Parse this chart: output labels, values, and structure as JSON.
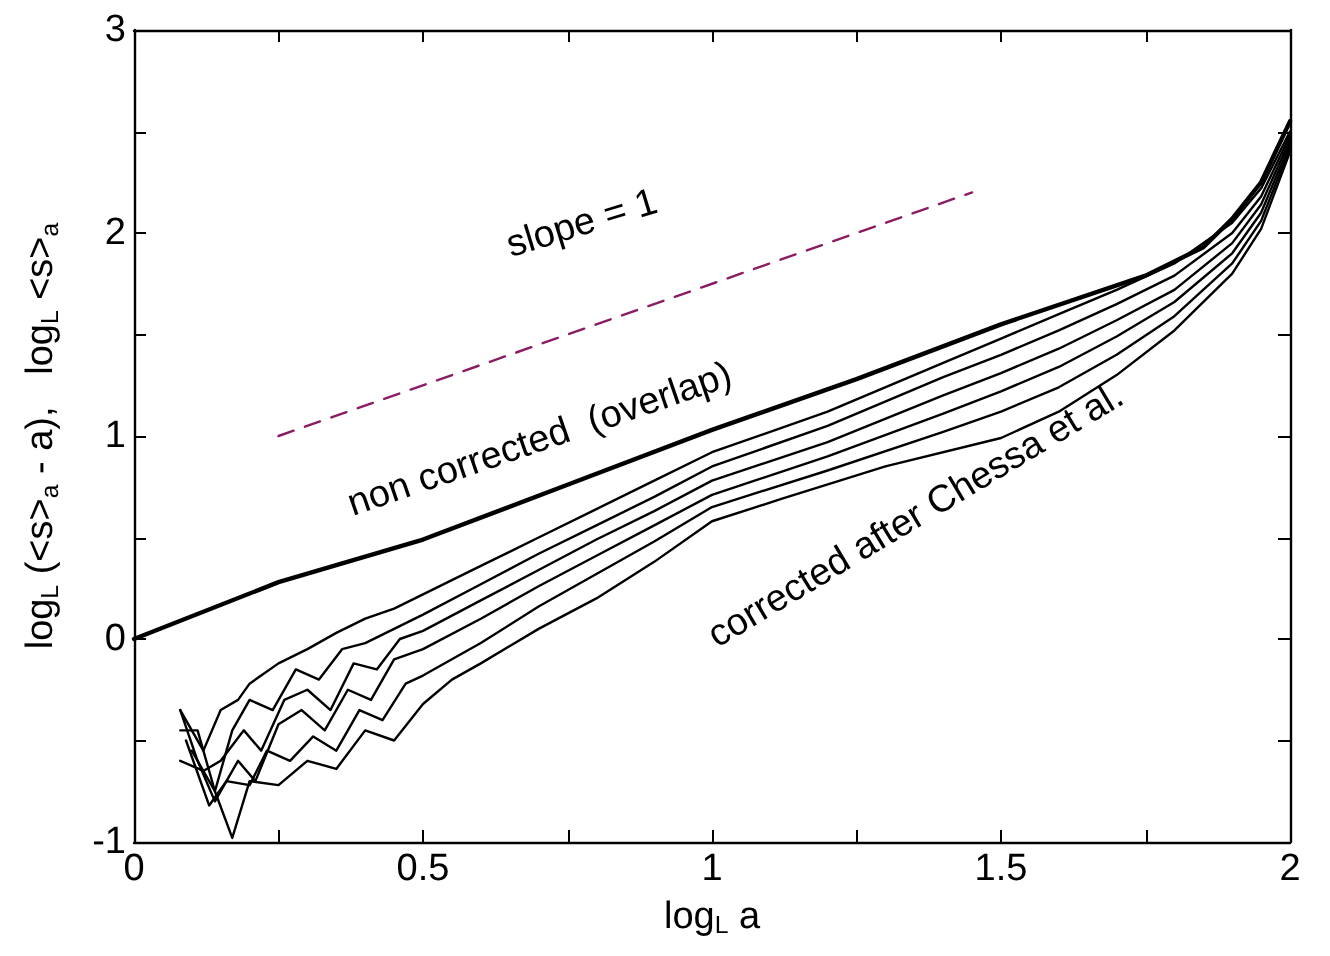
{
  "chart_data": {
    "type": "line",
    "xlabel": "log$_{L}$ a",
    "ylabel": "log$_{L}$ (<s>$_{a}$ - a),   log$_{L}$ <s>$_{a}$",
    "xlim": [
      0,
      2
    ],
    "ylim": [
      -1,
      3
    ],
    "xticks": [
      0,
      {
        "value": 0.25,
        "label": null
      },
      0.5,
      {
        "value": 0.75,
        "label": null
      },
      1,
      {
        "value": 1.25,
        "label": null
      },
      1.5,
      {
        "value": 1.75,
        "label": null
      },
      2
    ],
    "yticks": [
      -1,
      {
        "value": -0.5,
        "label": null
      },
      0,
      {
        "value": 0.5,
        "label": null
      },
      1,
      {
        "value": 1.5,
        "label": null
      },
      2,
      {
        "value": 2.5,
        "label": null
      },
      3
    ],
    "grid": false,
    "marker": "none",
    "line_style": "solid",
    "series": [
      {
        "color": "#000000",
        "x": [
          0,
          0.25,
          0.5,
          0.75,
          1,
          1.25,
          1.5,
          1.75,
          1.85,
          1.9,
          1.95,
          2
        ],
        "values": [
          0,
          0.28,
          0.49,
          0.76,
          1.03,
          1.28,
          1.55,
          1.79,
          1.93,
          2.07,
          2.25,
          2.55
        ]
      },
      {
        "color": "#000000",
        "x": [
          0.08,
          0.12,
          0.15,
          0.18,
          0.2,
          0.25,
          0.3,
          0.35,
          0.4,
          0.45,
          0.5,
          0.6,
          0.7,
          0.8,
          0.9,
          1,
          1.2,
          1.4,
          1.5,
          1.6,
          1.7,
          1.8,
          1.9,
          1.95,
          2
        ],
        "values": [
          -0.35,
          -0.55,
          -0.35,
          -0.3,
          -0.22,
          -0.12,
          -0.05,
          0.03,
          0.1,
          0.15,
          0.22,
          0.36,
          0.5,
          0.64,
          0.78,
          0.92,
          1.12,
          1.36,
          1.48,
          1.6,
          1.72,
          1.85,
          2.05,
          2.22,
          2.5
        ]
      },
      {
        "color": "#000000",
        "x": [
          0.08,
          0.11,
          0.14,
          0.17,
          0.2,
          0.24,
          0.28,
          0.32,
          0.36,
          0.4,
          0.45,
          0.5,
          0.6,
          0.7,
          0.8,
          0.9,
          1,
          1.2,
          1.4,
          1.5,
          1.6,
          1.7,
          1.8,
          1.9,
          1.95,
          2
        ],
        "values": [
          -0.45,
          -0.45,
          -0.75,
          -0.45,
          -0.3,
          -0.35,
          -0.15,
          -0.2,
          -0.05,
          -0.02,
          0.05,
          0.12,
          0.27,
          0.42,
          0.56,
          0.7,
          0.85,
          1.05,
          1.29,
          1.4,
          1.52,
          1.65,
          1.79,
          2,
          2.18,
          2.48
        ]
      },
      {
        "color": "#000000",
        "x": [
          0.08,
          0.12,
          0.15,
          0.19,
          0.22,
          0.26,
          0.3,
          0.34,
          0.38,
          0.42,
          0.46,
          0.5,
          0.6,
          0.7,
          0.8,
          0.9,
          1,
          1.2,
          1.4,
          1.5,
          1.6,
          1.7,
          1.8,
          1.9,
          1.95,
          2
        ],
        "values": [
          -0.6,
          -0.65,
          -0.6,
          -0.45,
          -0.55,
          -0.3,
          -0.25,
          -0.35,
          -0.12,
          -0.15,
          0,
          0.04,
          0.19,
          0.34,
          0.49,
          0.63,
          0.78,
          0.97,
          1.2,
          1.31,
          1.43,
          1.57,
          1.72,
          1.95,
          2.14,
          2.46
        ]
      },
      {
        "color": "#000000",
        "x": [
          0.08,
          0.11,
          0.14,
          0.18,
          0.21,
          0.25,
          0.29,
          0.33,
          0.37,
          0.41,
          0.45,
          0.5,
          0.6,
          0.7,
          0.8,
          0.9,
          1,
          1.2,
          1.4,
          1.5,
          1.6,
          1.7,
          1.8,
          1.9,
          1.95,
          2
        ],
        "values": [
          -0.35,
          -0.6,
          -0.8,
          -0.6,
          -0.7,
          -0.42,
          -0.35,
          -0.45,
          -0.25,
          -0.3,
          -0.1,
          -0.05,
          0.1,
          0.26,
          0.41,
          0.56,
          0.71,
          0.9,
          1.11,
          1.22,
          1.34,
          1.49,
          1.66,
          1.9,
          2.1,
          2.44
        ]
      },
      {
        "color": "#000000",
        "x": [
          0.09,
          0.13,
          0.16,
          0.2,
          0.23,
          0.27,
          0.31,
          0.35,
          0.39,
          0.43,
          0.47,
          0.5,
          0.6,
          0.7,
          0.8,
          0.9,
          1,
          1.2,
          1.4,
          1.5,
          1.6,
          1.7,
          1.8,
          1.9,
          1.95,
          2
        ],
        "values": [
          -0.5,
          -0.82,
          -0.7,
          -0.72,
          -0.55,
          -0.6,
          -0.48,
          -0.55,
          -0.35,
          -0.4,
          -0.22,
          -0.18,
          -0.02,
          0.16,
          0.32,
          0.48,
          0.65,
          0.83,
          1.02,
          1.12,
          1.24,
          1.4,
          1.59,
          1.85,
          2.06,
          2.42
        ]
      },
      {
        "color": "#000000",
        "x": [
          0.1,
          0.14,
          0.17,
          0.2,
          0.25,
          0.3,
          0.35,
          0.4,
          0.45,
          0.5,
          0.55,
          0.6,
          0.7,
          0.8,
          0.9,
          1,
          1.12,
          1.3,
          1.5,
          1.6,
          1.7,
          1.8,
          1.9,
          1.95,
          2
        ],
        "values": [
          -0.55,
          -0.75,
          -0.98,
          -0.7,
          -0.72,
          -0.6,
          -0.64,
          -0.45,
          -0.5,
          -0.32,
          -0.2,
          -0.12,
          0.05,
          0.2,
          0.38,
          0.58,
          0.69,
          0.85,
          0.99,
          1.12,
          1.3,
          1.52,
          1.8,
          2.02,
          2.4
        ]
      },
      {
        "color": "#8b1c62",
        "line_style": "dashed",
        "x": [
          0.25,
          1.45
        ],
        "values": [
          1,
          2.2
        ]
      }
    ],
    "annotations": [
      "slope = 1",
      "non corrected  (overlap)",
      "corrected after Chessa et al."
    ]
  }
}
